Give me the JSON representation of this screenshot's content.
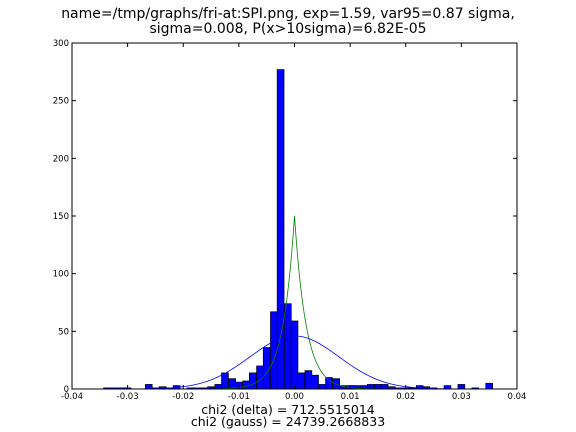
{
  "chart_data": {
    "type": "bar",
    "title_lines": [
      "name=/tmp/graphs/fri-at:SPI.png, exp=1.59, var95=0.87 sigma,",
      "sigma=0.008, P(x>10sigma)=6.82E-05"
    ],
    "footer_lines": [
      "chi2 (delta) = 712.5515014",
      "chi2 (gauss) = 24739.2668833"
    ],
    "xlim": [
      -0.04,
      0.04
    ],
    "ylim": [
      0,
      300
    ],
    "x_ticks": [
      -0.04,
      -0.03,
      -0.02,
      -0.01,
      0.0,
      0.01,
      0.02,
      0.03,
      0.04
    ],
    "x_tick_labels": [
      "-0.04",
      "-0.03",
      "-0.02",
      "-0.01",
      "0.00",
      "0.01",
      "0.02",
      "0.03",
      "0.04"
    ],
    "y_ticks": [
      0,
      50,
      100,
      150,
      200,
      250,
      300
    ],
    "y_tick_labels": [
      "0",
      "50",
      "100",
      "150",
      "200",
      "250",
      "300"
    ],
    "grid": false,
    "bin_width": 0.00125,
    "bins": {
      "centers": [
        -0.0337,
        -0.0325,
        -0.0312,
        -0.03,
        -0.0262,
        -0.025,
        -0.0237,
        -0.0225,
        -0.0212,
        -0.0187,
        -0.0175,
        -0.0162,
        -0.015,
        -0.0137,
        -0.0125,
        -0.0112,
        -0.01,
        -0.0087,
        -0.0075,
        -0.0062,
        -0.005,
        -0.0037,
        -0.0025,
        -0.0012,
        0.0,
        0.0012,
        0.0025,
        0.0037,
        0.005,
        0.0062,
        0.0075,
        0.0087,
        0.01,
        0.0112,
        0.0125,
        0.0137,
        0.015,
        0.0162,
        0.0175,
        0.0187,
        0.02,
        0.0212,
        0.0225,
        0.0237,
        0.025,
        0.0275,
        0.03,
        0.0325,
        0.035
      ],
      "counts": [
        1,
        1,
        1,
        1,
        4,
        1,
        2,
        1,
        3,
        1,
        1,
        1,
        2,
        4,
        14,
        9,
        6,
        7,
        14,
        20,
        36,
        67,
        277,
        74,
        59,
        14,
        16,
        12,
        4,
        10,
        9,
        3,
        3,
        3,
        3,
        4,
        4,
        4,
        2,
        1,
        1,
        1,
        3,
        2,
        1,
        3,
        4,
        1,
        5
      ]
    },
    "series": [
      {
        "type": "line",
        "color": "#008000",
        "model": "laplace",
        "peak": 150,
        "center": 0,
        "scale": 0.0021
      },
      {
        "type": "line",
        "color": "#0000ff",
        "model": "gaussian",
        "peak": 46,
        "center": 0,
        "sigma": 0.008
      }
    ],
    "bar_color": "#0000ff"
  }
}
